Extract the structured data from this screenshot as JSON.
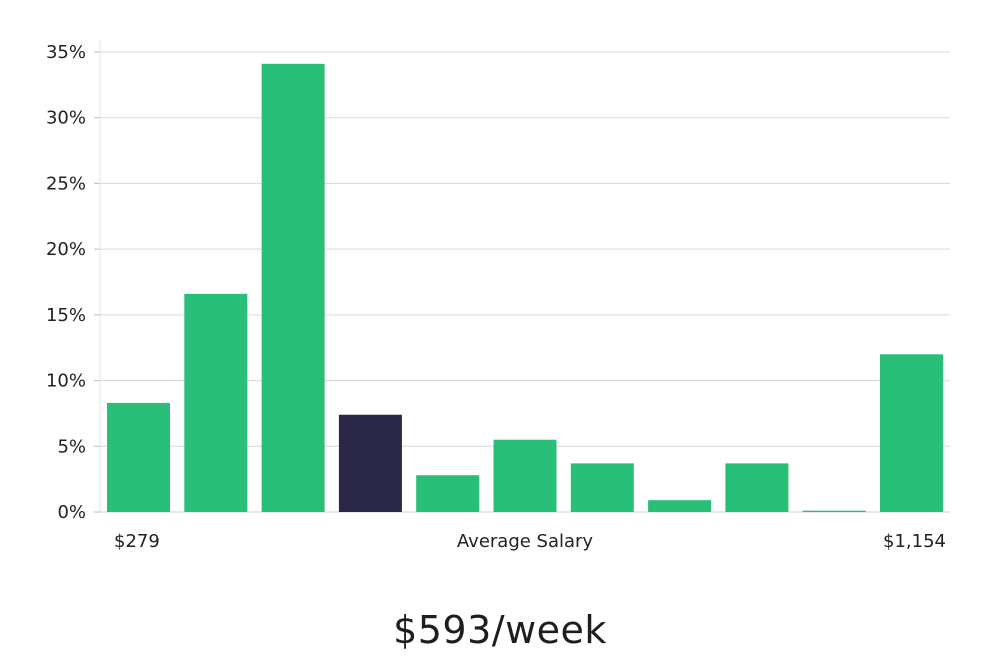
{
  "chart_data": {
    "type": "bar",
    "values": [
      8.3,
      16.6,
      34.1,
      7.4,
      2.8,
      5.5,
      3.7,
      0.9,
      3.7,
      0.1,
      12.0
    ],
    "highlight_index": 3,
    "ylim": [
      0,
      35
    ],
    "yticks": [
      0,
      5,
      10,
      15,
      20,
      25,
      30,
      35
    ],
    "ytick_labels": [
      "0%",
      "5%",
      "10%",
      "15%",
      "20%",
      "25%",
      "30%",
      "35%"
    ],
    "x_left_label": "$279",
    "xlabel": "Average Salary",
    "x_right_label": "$1,154",
    "grid": true,
    "colors": {
      "bar": "#2abf78",
      "highlight": "#2a2747",
      "grid": "#d9d9d9"
    }
  },
  "headline": "$593/week"
}
